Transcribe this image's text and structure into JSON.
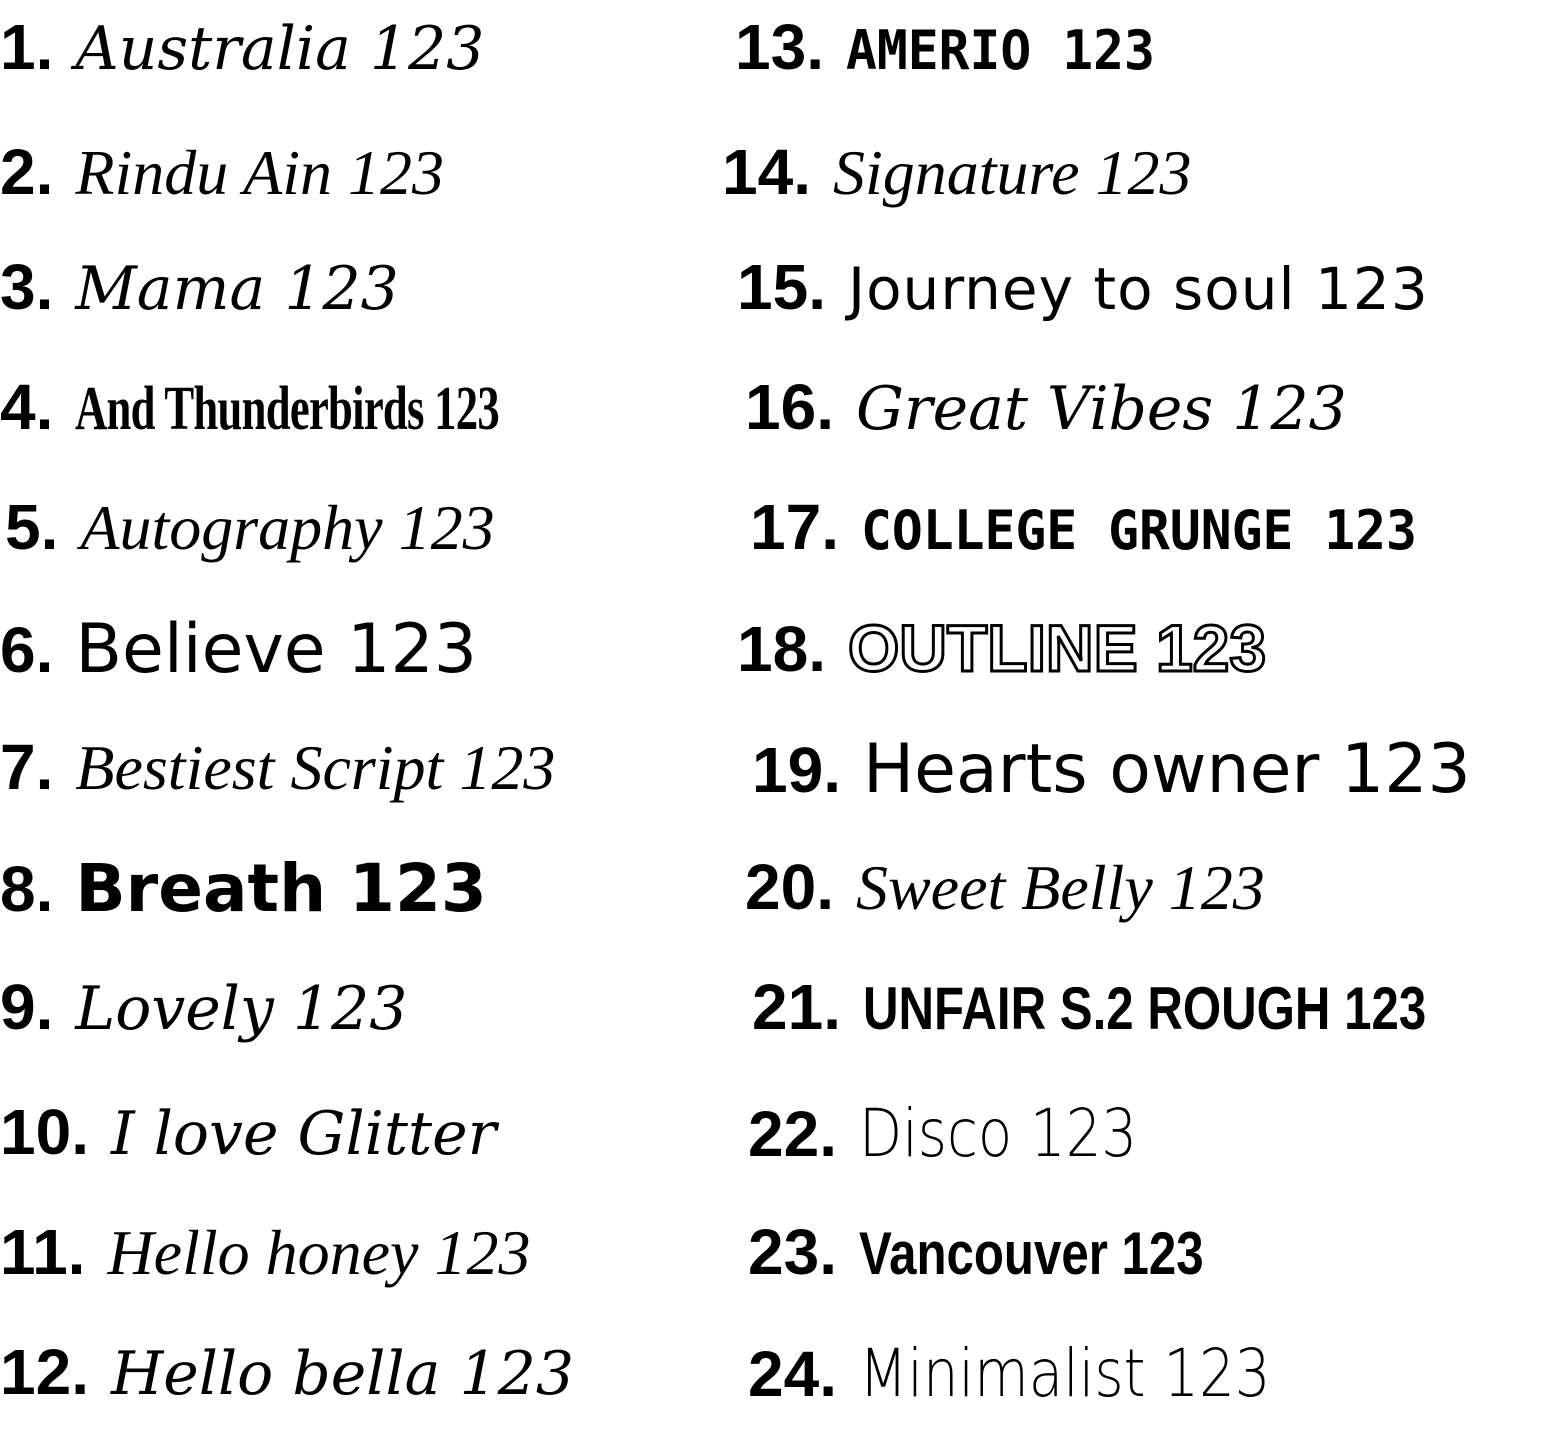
{
  "fonts": [
    {
      "number": "1.",
      "sample": "Australia 123"
    },
    {
      "number": "2.",
      "sample": "Rindu Ain 123"
    },
    {
      "number": "3.",
      "sample": "Mama 123"
    },
    {
      "number": "4.",
      "sample": "And Thunderbirds 123"
    },
    {
      "number": "5.",
      "sample": "Autography 123"
    },
    {
      "number": "6.",
      "sample": "Believe 123"
    },
    {
      "number": "7.",
      "sample": "Bestiest Script 123"
    },
    {
      "number": "8.",
      "sample": "Breath 123"
    },
    {
      "number": "9.",
      "sample": "Lovely 123"
    },
    {
      "number": "10.",
      "sample": "I love Glitter"
    },
    {
      "number": "11.",
      "sample": "Hello honey 123"
    },
    {
      "number": "12.",
      "sample": "Hello bella 123"
    },
    {
      "number": "13.",
      "sample": "AMERIO 123"
    },
    {
      "number": "14.",
      "sample": "Signature 123"
    },
    {
      "number": "15.",
      "sample": "Journey to soul 123"
    },
    {
      "number": "16.",
      "sample": "Great Vibes 123"
    },
    {
      "number": "17.",
      "sample": "COLLEGE GRUNGE 123"
    },
    {
      "number": "18.",
      "sample": "OUTLINE 123"
    },
    {
      "number": "19.",
      "sample": "Hearts owner 123"
    },
    {
      "number": "20.",
      "sample": "Sweet Belly 123"
    },
    {
      "number": "21.",
      "sample": "UNFAIR S.2 ROUGH 123"
    },
    {
      "number": "22.",
      "sample": "Disco 123"
    },
    {
      "number": "23.",
      "sample": "Vancouver 123"
    },
    {
      "number": "24.",
      "sample": "Minimalist 123"
    }
  ]
}
